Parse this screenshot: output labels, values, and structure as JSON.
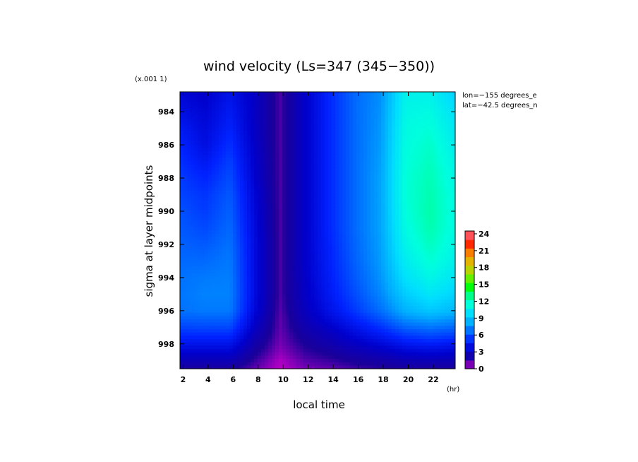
{
  "chart_data": {
    "type": "heatmap",
    "title": "wind velocity (Ls=347 (345−350))",
    "xlabel": "local time",
    "x_unit": "(hr)",
    "ylabel": "sigma at layer midpoints",
    "y_scale_note": "(x.001 1)",
    "annotations": [
      "lon=−155 degrees_e",
      "lat=−42.5 degrees_n"
    ],
    "x_ticks": [
      "2",
      "4",
      "6",
      "8",
      "10",
      "12",
      "14",
      "16",
      "18",
      "20",
      "22"
    ],
    "y_ticks": [
      "984",
      "986",
      "988",
      "990",
      "992",
      "994",
      "996",
      "998"
    ],
    "xlim": [
      1.75,
      23.75
    ],
    "ylim": [
      982.8,
      999.5
    ],
    "y_inverted": true,
    "colorbar": {
      "ticks": [
        "0",
        "3",
        "6",
        "9",
        "12",
        "15",
        "18",
        "21",
        "24"
      ],
      "min": 0,
      "max": 24.5,
      "colors": [
        "#cc00cc",
        "#1b0099",
        "#0000cc",
        "#0022ff",
        "#0066ff",
        "#00aaff",
        "#00ddff",
        "#00ffdd",
        "#00ff88",
        "#00ff00",
        "#77ee00",
        "#cccc00",
        "#eeaa00",
        "#ff6600",
        "#ff0000",
        "#ff99aa"
      ]
    },
    "x": [
      1.75,
      3.75,
      5.75,
      7.75,
      9.75,
      11.75,
      13.75,
      15.75,
      17.75,
      19.75,
      21.75,
      23.75
    ],
    "y": [
      983,
      984,
      985,
      986,
      987,
      988,
      989,
      990,
      991,
      992,
      993,
      994,
      995,
      996,
      996.5,
      997,
      997.5,
      998,
      998.5,
      999,
      999.5
    ],
    "z": [
      [
        3.6,
        3.2,
        4.2,
        3.0,
        1.2,
        3.2,
        5.0,
        6.6,
        7.5,
        10.8,
        10.8,
        9.5
      ],
      [
        4.0,
        3.5,
        4.5,
        3.0,
        1.2,
        3.2,
        5.0,
        6.6,
        7.6,
        11.0,
        11.2,
        10.0
      ],
      [
        4.5,
        3.7,
        4.8,
        3.0,
        1.2,
        3.2,
        5.0,
        6.6,
        7.7,
        11.2,
        11.5,
        10.3
      ],
      [
        4.9,
        3.9,
        5.2,
        3.1,
        1.2,
        3.2,
        5.0,
        6.6,
        7.8,
        11.3,
        11.8,
        10.6
      ],
      [
        5.2,
        4.4,
        5.6,
        3.2,
        1.2,
        3.2,
        5.0,
        6.6,
        7.9,
        11.4,
        12.0,
        10.9
      ],
      [
        5.5,
        4.9,
        5.9,
        3.3,
        1.2,
        3.2,
        5.0,
        6.6,
        8.0,
        11.5,
        12.2,
        11.0
      ],
      [
        5.7,
        5.3,
        6.2,
        3.5,
        1.2,
        3.2,
        5.0,
        6.6,
        8.0,
        11.5,
        12.3,
        11.2
      ],
      [
        6.0,
        5.5,
        6.4,
        3.6,
        1.2,
        3.2,
        5.0,
        6.6,
        8.0,
        11.4,
        12.4,
        11.2
      ],
      [
        6.2,
        5.8,
        6.6,
        3.7,
        1.2,
        3.2,
        5.0,
        6.6,
        8.0,
        11.2,
        12.3,
        11.2
      ],
      [
        6.4,
        6.2,
        6.8,
        3.8,
        1.2,
        3.2,
        4.9,
        6.5,
        7.9,
        10.9,
        12.0,
        11.0
      ],
      [
        6.6,
        6.6,
        7.0,
        3.8,
        1.2,
        3.2,
        4.8,
        6.4,
        7.8,
        10.5,
        11.6,
        10.7
      ],
      [
        6.8,
        7.0,
        7.1,
        3.8,
        1.2,
        3.1,
        4.7,
        6.2,
        7.6,
        10.0,
        11.0,
        10.2
      ],
      [
        6.9,
        7.2,
        7.2,
        3.8,
        1.2,
        3.0,
        4.5,
        5.9,
        7.3,
        9.3,
        10.2,
        9.5
      ],
      [
        6.8,
        7.0,
        7.0,
        3.6,
        1.1,
        2.8,
        4.1,
        5.4,
        6.7,
        8.4,
        9.1,
        8.6
      ],
      [
        6.3,
        6.4,
        6.4,
        3.3,
        1.0,
        2.6,
        3.7,
        4.8,
        6.0,
        7.5,
        8.0,
        7.6
      ],
      [
        5.7,
        5.8,
        5.8,
        3.0,
        1.0,
        2.3,
        3.2,
        4.2,
        5.2,
        6.5,
        6.9,
        6.6
      ],
      [
        5.0,
        5.0,
        5.0,
        2.6,
        0.9,
        2.0,
        2.7,
        3.6,
        4.4,
        5.4,
        5.8,
        5.5
      ],
      [
        4.2,
        4.2,
        4.2,
        2.2,
        0.8,
        1.7,
        2.3,
        3.0,
        3.6,
        4.4,
        4.7,
        4.4
      ],
      [
        3.4,
        3.4,
        3.4,
        1.8,
        0.6,
        1.4,
        1.8,
        2.4,
        2.8,
        3.4,
        3.6,
        3.4
      ],
      [
        2.6,
        2.6,
        2.6,
        1.4,
        0.3,
        1.1,
        1.4,
        1.8,
        2.1,
        2.5,
        2.6,
        2.5
      ],
      [
        1.8,
        1.8,
        1.8,
        1.0,
        0.2,
        0.8,
        1.0,
        1.3,
        1.5,
        1.7,
        1.8,
        1.8
      ]
    ]
  }
}
